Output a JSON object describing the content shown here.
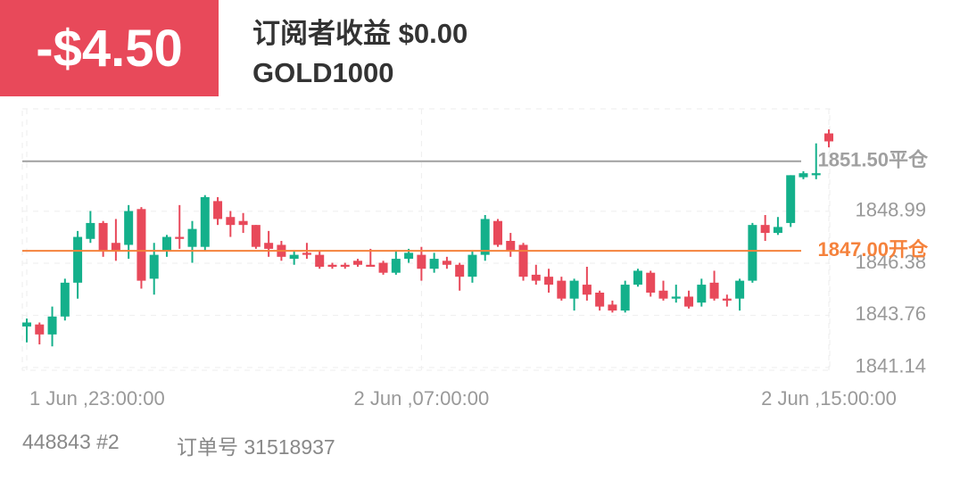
{
  "header": {
    "pnl": "-$4.50",
    "title": "订阅者收益 $0.00",
    "symbol": "GOLD1000"
  },
  "footer": {
    "account": "448843 #2",
    "order": "订单号 31518937"
  },
  "chart_data": {
    "type": "candlestick",
    "categories": [
      "1 Jun ,23:00:00",
      null,
      null,
      null,
      null,
      null,
      null,
      null,
      null,
      null,
      null,
      null,
      null,
      null,
      null,
      null,
      null,
      null,
      null,
      null,
      null,
      null,
      null,
      null,
      null,
      null,
      null,
      null,
      null,
      null,
      null,
      "2 Jun ,07:00:00",
      null,
      null,
      null,
      null,
      null,
      null,
      null,
      null,
      null,
      null,
      null,
      null,
      null,
      null,
      null,
      null,
      null,
      null,
      null,
      null,
      null,
      null,
      null,
      null,
      null,
      null,
      null,
      null,
      null,
      null,
      null,
      "2 Jun ,15:00:00"
    ],
    "open": [
      1843.2,
      1843.3,
      1842.8,
      1843.7,
      1845.4,
      1847.6,
      1848.4,
      1847.4,
      1847.3,
      1849.1,
      1845.6,
      1847.0,
      1847.7,
      1847.2,
      1847.2,
      1849.5,
      1848.7,
      1848.5,
      1848.3,
      1847.4,
      1847.3,
      1846.6,
      1846.9,
      1846.8,
      1846.3,
      1846.3,
      1846.5,
      1846.3,
      1846.4,
      1845.9,
      1846.6,
      1846.8,
      1846.1,
      1846.5,
      1846.3,
      1845.7,
      1846.8,
      1848.5,
      1847.5,
      1847.3,
      1845.8,
      1845.7,
      1845.5,
      1844.6,
      1845.3,
      1844.9,
      1844.3,
      1844.0,
      1845.3,
      1845.9,
      1845.0,
      1844.6,
      1844.7,
      1844.4,
      1845.4,
      1844.6,
      1844.6,
      1845.5,
      1848.3,
      1847.9,
      1848.4,
      1850.7,
      1850.8,
      1852.9
    ],
    "high": [
      1843.6,
      1843.4,
      1844.2,
      1845.6,
      1848.0,
      1849.0,
      1848.5,
      1848.6,
      1849.3,
      1849.2,
      1847.4,
      1847.8,
      1849.3,
      1848.5,
      1849.8,
      1849.7,
      1849.0,
      1848.9,
      1848.3,
      1848.0,
      1847.5,
      1847.0,
      1847.4,
      1847.0,
      1846.4,
      1846.4,
      1846.6,
      1847.1,
      1846.5,
      1847.0,
      1847.1,
      1847.2,
      1846.9,
      1846.7,
      1846.4,
      1847.0,
      1848.8,
      1848.6,
      1847.9,
      1847.4,
      1846.3,
      1846.1,
      1845.7,
      1845.6,
      1846.2,
      1845.0,
      1844.5,
      1845.5,
      1846.1,
      1846.0,
      1845.5,
      1845.3,
      1845.0,
      1845.6,
      1846.0,
      1844.8,
      1845.6,
      1848.4,
      1848.8,
      1848.7,
      1850.8,
      1851.0,
      1852.4,
      1853.1
    ],
    "low": [
      1842.4,
      1842.3,
      1842.2,
      1843.5,
      1844.6,
      1847.4,
      1846.7,
      1846.5,
      1846.6,
      1845.1,
      1844.8,
      1846.7,
      1847.1,
      1846.4,
      1847.0,
      1848.3,
      1847.7,
      1847.9,
      1847.1,
      1846.7,
      1846.5,
      1846.3,
      1846.6,
      1846.1,
      1846.1,
      1846.1,
      1846.2,
      1846.2,
      1845.8,
      1845.8,
      1846.4,
      1845.5,
      1845.9,
      1846.1,
      1845.0,
      1845.4,
      1846.5,
      1847.2,
      1846.7,
      1845.5,
      1845.3,
      1844.9,
      1844.5,
      1844.0,
      1844.5,
      1844.0,
      1843.9,
      1843.9,
      1845.2,
      1844.7,
      1844.5,
      1844.4,
      1844.1,
      1844.2,
      1844.5,
      1844.2,
      1844.0,
      1845.4,
      1847.5,
      1847.8,
      1848.2,
      1850.6,
      1850.6,
      1852.2
    ],
    "close": [
      1843.4,
      1842.8,
      1843.7,
      1845.4,
      1847.7,
      1848.4,
      1847.0,
      1847.0,
      1849.0,
      1845.5,
      1846.8,
      1847.7,
      1847.6,
      1848.1,
      1849.7,
      1848.6,
      1848.3,
      1848.3,
      1847.2,
      1847.1,
      1846.7,
      1846.8,
      1846.8,
      1846.2,
      1846.2,
      1846.2,
      1846.3,
      1846.2,
      1845.9,
      1846.6,
      1846.9,
      1846.1,
      1846.6,
      1846.3,
      1845.7,
      1846.8,
      1848.6,
      1847.3,
      1847.0,
      1845.7,
      1845.5,
      1845.3,
      1844.6,
      1845.5,
      1844.8,
      1844.2,
      1844.0,
      1845.3,
      1846.0,
      1844.9,
      1844.6,
      1844.7,
      1844.2,
      1845.3,
      1844.6,
      1844.5,
      1845.5,
      1848.3,
      1847.9,
      1848.2,
      1850.8,
      1850.9,
      1850.9,
      1852.5
    ],
    "up_color": "#14b08b",
    "down_color": "#e8495a",
    "ylim": [
      1841.0,
      1854.0
    ],
    "yticks": [
      1841.14,
      1843.76,
      1846.38,
      1848.99
    ],
    "grid": true,
    "levels": [
      {
        "value": 1851.5,
        "label": "1851.50平仓",
        "color": "#a0a0a0"
      },
      {
        "value": 1847.0,
        "label": "1847.00开仓",
        "color": "#f5823c"
      }
    ]
  }
}
